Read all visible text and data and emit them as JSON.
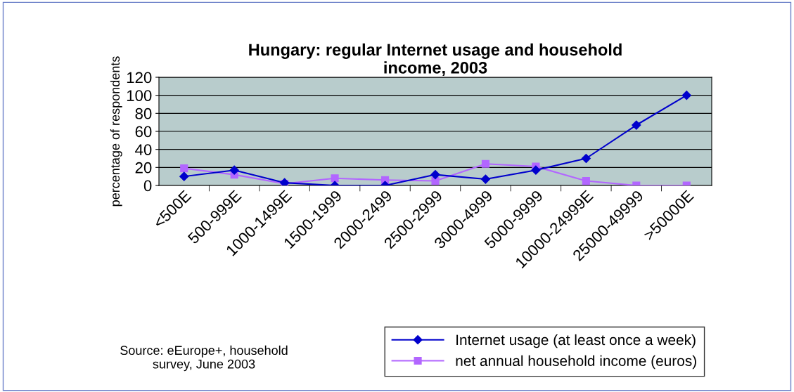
{
  "chart_data": {
    "type": "line",
    "title": "Hungary: regular Internet usage and household\nincome, 2003",
    "ylabel": "percentage of respondents",
    "categories": [
      "<500E",
      "500-999E",
      "1000-1499E",
      "1500-1999",
      "2000-2499",
      "2500-2999",
      "3000-4999",
      "5000-9999",
      "10000-24999E",
      "25000-49999",
      ">50000E"
    ],
    "series": [
      {
        "name": "Internet usage (at least once a week)",
        "color": "#0000cc",
        "marker": "diamond",
        "values": [
          10,
          17,
          3,
          0,
          0,
          12,
          7,
          17,
          30,
          67,
          100
        ]
      },
      {
        "name": "net annual household income (euros)",
        "color": "#b266ff",
        "marker": "square",
        "values": [
          19,
          12,
          2,
          8,
          6,
          5,
          24,
          21,
          5,
          0,
          0
        ]
      }
    ],
    "ylim": [
      0,
      120
    ],
    "yticks": [
      0,
      20,
      40,
      60,
      80,
      100,
      120
    ],
    "grid": "y",
    "legend": "bottom right",
    "annotations": [
      "Source: eEurope+, household\nsurvey, June 2003"
    ]
  }
}
